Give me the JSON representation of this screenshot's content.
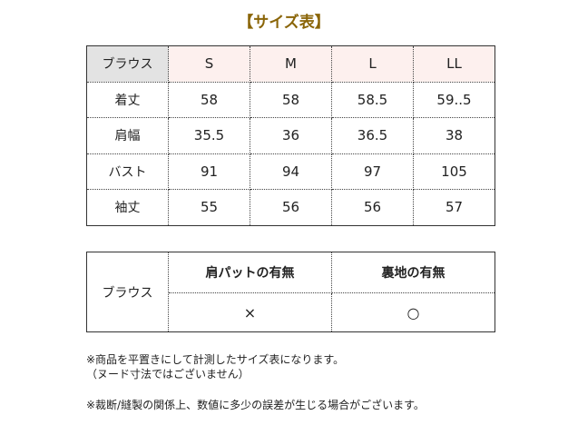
{
  "title": "【サイズ表】",
  "colors": {
    "title": "#8a6508",
    "header_pink": "#fdf0ee",
    "header_gray": "#e3e3e3"
  },
  "size_table": {
    "corner": "ブラウス",
    "sizes": [
      "S",
      "M",
      "L",
      "LL"
    ],
    "rows": [
      {
        "label": "着丈",
        "values": [
          "58",
          "58",
          "58.5",
          "59..5"
        ]
      },
      {
        "label": "肩幅",
        "values": [
          "35.5",
          "36",
          "36.5",
          "38"
        ]
      },
      {
        "label": "バスト",
        "values": [
          "91",
          "94",
          "97",
          "105"
        ]
      },
      {
        "label": "袖丈",
        "values": [
          "55",
          "56",
          "56",
          "57"
        ]
      }
    ]
  },
  "feature_table": {
    "row_label": "ブラウス",
    "headers": [
      "肩パットの有無",
      "裏地の有無"
    ],
    "values": [
      "×",
      "○"
    ]
  },
  "notes": [
    "※商品を平置きにして計測したサイズ表になります。",
    "（ヌード寸法ではございません）",
    "※裁断/縫製の関係上、数値に多少の誤差が生じる場合がございます。"
  ]
}
